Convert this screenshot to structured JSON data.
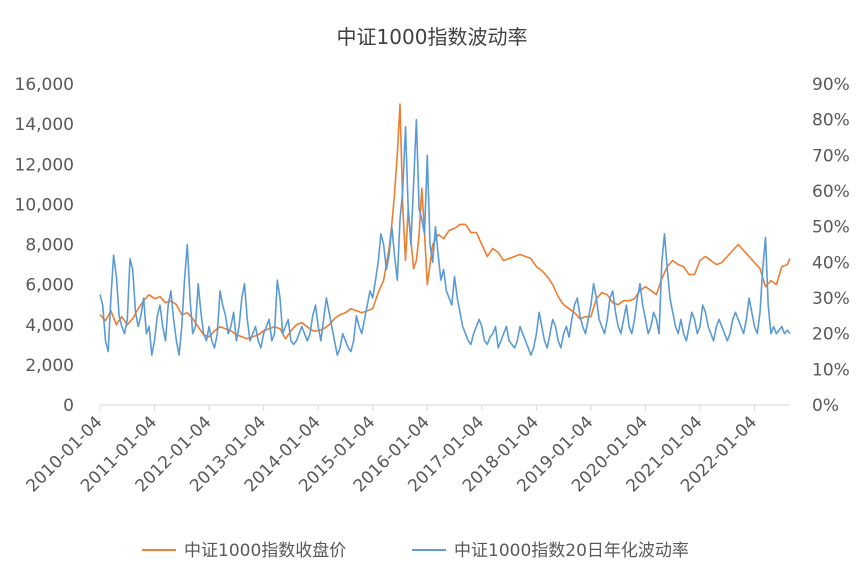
{
  "chart_data": {
    "type": "line",
    "title": "中证1000指数波动率",
    "x_tick_labels": [
      "2010-01-04",
      "2011-01-04",
      "2012-01-04",
      "2013-01-04",
      "2014-01-04",
      "2015-01-04",
      "2016-01-04",
      "2017-01-04",
      "2018-01-04",
      "2019-01-04",
      "2020-01-04",
      "2021-01-04",
      "2022-01-04"
    ],
    "x_range": [
      2010.0,
      2022.65
    ],
    "y_left": {
      "min": 0,
      "max": 16000,
      "ticks": [
        0,
        2000,
        4000,
        6000,
        8000,
        10000,
        12000,
        14000,
        16000
      ],
      "tick_labels": [
        "0",
        "2,000",
        "4,000",
        "6,000",
        "8,000",
        "10,000",
        "12,000",
        "14,000",
        "16,000"
      ]
    },
    "y_right": {
      "min": 0,
      "max": 90,
      "ticks": [
        0,
        10,
        20,
        30,
        40,
        50,
        60,
        70,
        80,
        90
      ],
      "tick_labels": [
        "0%",
        "10%",
        "20%",
        "30%",
        "40%",
        "50%",
        "60%",
        "70%",
        "80%",
        "90%"
      ]
    },
    "grid": false,
    "legend_position": "bottom",
    "series": [
      {
        "name": "中证1000指数收盘价",
        "axis": "left",
        "color": "#ED7D31",
        "x": [
          2010.0,
          2010.1,
          2010.2,
          2010.3,
          2010.4,
          2010.5,
          2010.6,
          2010.7,
          2010.8,
          2010.9,
          2011.0,
          2011.1,
          2011.2,
          2011.3,
          2011.4,
          2011.5,
          2011.6,
          2011.7,
          2011.8,
          2011.9,
          2012.0,
          2012.1,
          2012.2,
          2012.3,
          2012.4,
          2012.5,
          2012.6,
          2012.7,
          2012.8,
          2012.9,
          2013.0,
          2013.1,
          2013.2,
          2013.3,
          2013.4,
          2013.5,
          2013.6,
          2013.7,
          2013.8,
          2013.9,
          2014.0,
          2014.1,
          2014.2,
          2014.3,
          2014.4,
          2014.5,
          2014.6,
          2014.7,
          2014.8,
          2014.9,
          2015.0,
          2015.1,
          2015.2,
          2015.3,
          2015.35,
          2015.4,
          2015.45,
          2015.5,
          2015.55,
          2015.6,
          2015.65,
          2015.7,
          2015.75,
          2015.8,
          2015.85,
          2015.9,
          2015.95,
          2016.0,
          2016.05,
          2016.1,
          2016.2,
          2016.3,
          2016.4,
          2016.5,
          2016.6,
          2016.7,
          2016.8,
          2016.9,
          2017.0,
          2017.1,
          2017.2,
          2017.3,
          2017.4,
          2017.5,
          2017.6,
          2017.7,
          2017.8,
          2017.9,
          2018.0,
          2018.1,
          2018.2,
          2018.3,
          2018.4,
          2018.5,
          2018.6,
          2018.7,
          2018.8,
          2018.9,
          2019.0,
          2019.1,
          2019.2,
          2019.3,
          2019.4,
          2019.5,
          2019.6,
          2019.7,
          2019.8,
          2019.9,
          2020.0,
          2020.1,
          2020.2,
          2020.3,
          2020.4,
          2020.5,
          2020.6,
          2020.7,
          2020.8,
          2020.9,
          2021.0,
          2021.1,
          2021.2,
          2021.3,
          2021.4,
          2021.5,
          2021.6,
          2021.7,
          2021.8,
          2021.9,
          2022.0,
          2022.1,
          2022.2,
          2022.3,
          2022.4,
          2022.5,
          2022.6,
          2022.65
        ],
        "values": [
          4500,
          4200,
          4700,
          4000,
          4400,
          4000,
          4300,
          4800,
          5200,
          5500,
          5300,
          5400,
          5100,
          5200,
          5000,
          4500,
          4600,
          4300,
          3900,
          3500,
          3400,
          3700,
          3900,
          3800,
          3700,
          3500,
          3400,
          3300,
          3400,
          3500,
          3700,
          3800,
          3900,
          3800,
          3300,
          3700,
          4000,
          4100,
          3900,
          3700,
          3700,
          3800,
          4000,
          4300,
          4500,
          4600,
          4800,
          4700,
          4600,
          4700,
          4800,
          5600,
          6200,
          7800,
          9000,
          10500,
          12500,
          15000,
          10000,
          7200,
          9800,
          8200,
          6800,
          7200,
          8500,
          10800,
          8600,
          6000,
          7000,
          8000,
          8500,
          8300,
          8700,
          8800,
          9000,
          9000,
          8600,
          8600,
          8000,
          7400,
          7800,
          7600,
          7200,
          7300,
          7400,
          7500,
          7400,
          7300,
          6900,
          6700,
          6400,
          6000,
          5400,
          5000,
          4800,
          4600,
          4300,
          4400,
          4400,
          5300,
          5600,
          5500,
          5100,
          5000,
          5200,
          5200,
          5300,
          5700,
          5900,
          5700,
          5500,
          6300,
          6900,
          7200,
          7000,
          6900,
          6500,
          6500,
          7200,
          7400,
          7200,
          7000,
          7100,
          7400,
          7700,
          8000,
          7700,
          7400,
          7100,
          6800,
          5900,
          6200,
          6000,
          6900,
          7000,
          7300
        ]
      },
      {
        "name": "中证1000指数20日年化波动率",
        "axis": "right",
        "color": "#5B9BD5",
        "x": [
          2010.0,
          2010.05,
          2010.1,
          2010.15,
          2010.2,
          2010.25,
          2010.3,
          2010.35,
          2010.4,
          2010.45,
          2010.5,
          2010.55,
          2010.6,
          2010.65,
          2010.7,
          2010.75,
          2010.8,
          2010.85,
          2010.9,
          2010.95,
          2011.0,
          2011.05,
          2011.1,
          2011.15,
          2011.2,
          2011.25,
          2011.3,
          2011.35,
          2011.4,
          2011.45,
          2011.5,
          2011.55,
          2011.6,
          2011.65,
          2011.7,
          2011.75,
          2011.8,
          2011.85,
          2011.9,
          2011.95,
          2012.0,
          2012.05,
          2012.1,
          2012.15,
          2012.2,
          2012.25,
          2012.3,
          2012.35,
          2012.4,
          2012.45,
          2012.5,
          2012.55,
          2012.6,
          2012.65,
          2012.7,
          2012.75,
          2012.8,
          2012.85,
          2012.9,
          2012.95,
          2013.0,
          2013.05,
          2013.1,
          2013.15,
          2013.2,
          2013.25,
          2013.3,
          2013.35,
          2013.4,
          2013.45,
          2013.5,
          2013.55,
          2013.6,
          2013.65,
          2013.7,
          2013.75,
          2013.8,
          2013.85,
          2013.9,
          2013.95,
          2014.0,
          2014.05,
          2014.1,
          2014.15,
          2014.2,
          2014.25,
          2014.3,
          2014.35,
          2014.4,
          2014.45,
          2014.5,
          2014.55,
          2014.6,
          2014.65,
          2014.7,
          2014.75,
          2014.8,
          2014.85,
          2014.9,
          2014.95,
          2015.0,
          2015.05,
          2015.1,
          2015.15,
          2015.2,
          2015.25,
          2015.3,
          2015.35,
          2015.4,
          2015.45,
          2015.5,
          2015.55,
          2015.6,
          2015.65,
          2015.7,
          2015.75,
          2015.8,
          2015.85,
          2015.9,
          2015.95,
          2016.0,
          2016.05,
          2016.1,
          2016.15,
          2016.2,
          2016.25,
          2016.3,
          2016.35,
          2016.4,
          2016.45,
          2016.5,
          2016.55,
          2016.6,
          2016.65,
          2016.7,
          2016.75,
          2016.8,
          2016.85,
          2016.9,
          2016.95,
          2017.0,
          2017.05,
          2017.1,
          2017.15,
          2017.2,
          2017.25,
          2017.3,
          2017.35,
          2017.4,
          2017.45,
          2017.5,
          2017.55,
          2017.6,
          2017.65,
          2017.7,
          2017.75,
          2017.8,
          2017.85,
          2017.9,
          2017.95,
          2018.0,
          2018.05,
          2018.1,
          2018.15,
          2018.2,
          2018.25,
          2018.3,
          2018.35,
          2018.4,
          2018.45,
          2018.5,
          2018.55,
          2018.6,
          2018.65,
          2018.7,
          2018.75,
          2018.8,
          2018.85,
          2018.9,
          2018.95,
          2019.0,
          2019.05,
          2019.1,
          2019.15,
          2019.2,
          2019.25,
          2019.3,
          2019.35,
          2019.4,
          2019.45,
          2019.5,
          2019.55,
          2019.6,
          2019.65,
          2019.7,
          2019.75,
          2019.8,
          2019.85,
          2019.9,
          2019.95,
          2020.0,
          2020.05,
          2020.1,
          2020.15,
          2020.2,
          2020.25,
          2020.3,
          2020.35,
          2020.4,
          2020.45,
          2020.5,
          2020.55,
          2020.6,
          2020.65,
          2020.7,
          2020.75,
          2020.8,
          2020.85,
          2020.9,
          2020.95,
          2021.0,
          2021.05,
          2021.1,
          2021.15,
          2021.2,
          2021.25,
          2021.3,
          2021.35,
          2021.4,
          2021.45,
          2021.5,
          2021.55,
          2021.6,
          2021.65,
          2021.7,
          2021.75,
          2021.8,
          2021.85,
          2021.9,
          2021.95,
          2022.0,
          2022.05,
          2022.1,
          2022.15,
          2022.2,
          2022.25,
          2022.3,
          2022.35,
          2022.4,
          2022.45,
          2022.5,
          2022.55,
          2022.6,
          2022.65
        ],
        "values": [
          31,
          28,
          18,
          15,
          30,
          42,
          36,
          25,
          22,
          20,
          24,
          41,
          38,
          26,
          22,
          25,
          30,
          20,
          22,
          14,
          18,
          25,
          28,
          22,
          18,
          28,
          32,
          24,
          18,
          14,
          22,
          35,
          45,
          30,
          20,
          22,
          34,
          26,
          20,
          18,
          22,
          18,
          16,
          20,
          32,
          28,
          25,
          20,
          22,
          26,
          18,
          22,
          30,
          34,
          24,
          18,
          20,
          22,
          18,
          16,
          20,
          22,
          24,
          18,
          20,
          35,
          30,
          20,
          22,
          24,
          18,
          17,
          18,
          20,
          22,
          20,
          18,
          20,
          25,
          28,
          22,
          18,
          24,
          30,
          26,
          22,
          18,
          14,
          16,
          20,
          18,
          16,
          15,
          18,
          25,
          22,
          20,
          24,
          28,
          32,
          30,
          35,
          40,
          48,
          45,
          38,
          42,
          50,
          42,
          35,
          52,
          60,
          78,
          55,
          45,
          62,
          80,
          55,
          52,
          48,
          70,
          45,
          40,
          50,
          42,
          35,
          38,
          32,
          30,
          28,
          36,
          30,
          26,
          22,
          20,
          18,
          17,
          20,
          22,
          24,
          22,
          18,
          17,
          19,
          20,
          22,
          16,
          18,
          20,
          22,
          18,
          17,
          16,
          18,
          22,
          20,
          18,
          16,
          14,
          16,
          20,
          26,
          22,
          18,
          16,
          20,
          24,
          22,
          18,
          16,
          20,
          22,
          19,
          24,
          28,
          30,
          25,
          22,
          20,
          24,
          28,
          34,
          30,
          24,
          22,
          20,
          24,
          30,
          32,
          26,
          22,
          20,
          24,
          28,
          22,
          20,
          24,
          30,
          34,
          28,
          24,
          20,
          22,
          26,
          24,
          20,
          40,
          48,
          38,
          30,
          26,
          22,
          20,
          24,
          20,
          18,
          22,
          26,
          24,
          20,
          22,
          28,
          26,
          22,
          20,
          18,
          22,
          24,
          22,
          20,
          18,
          20,
          24,
          26,
          24,
          22,
          20,
          24,
          30,
          26,
          22,
          20,
          26,
          38,
          47,
          28,
          20,
          22,
          20,
          21,
          22,
          20,
          21,
          20
        ]
      }
    ]
  }
}
